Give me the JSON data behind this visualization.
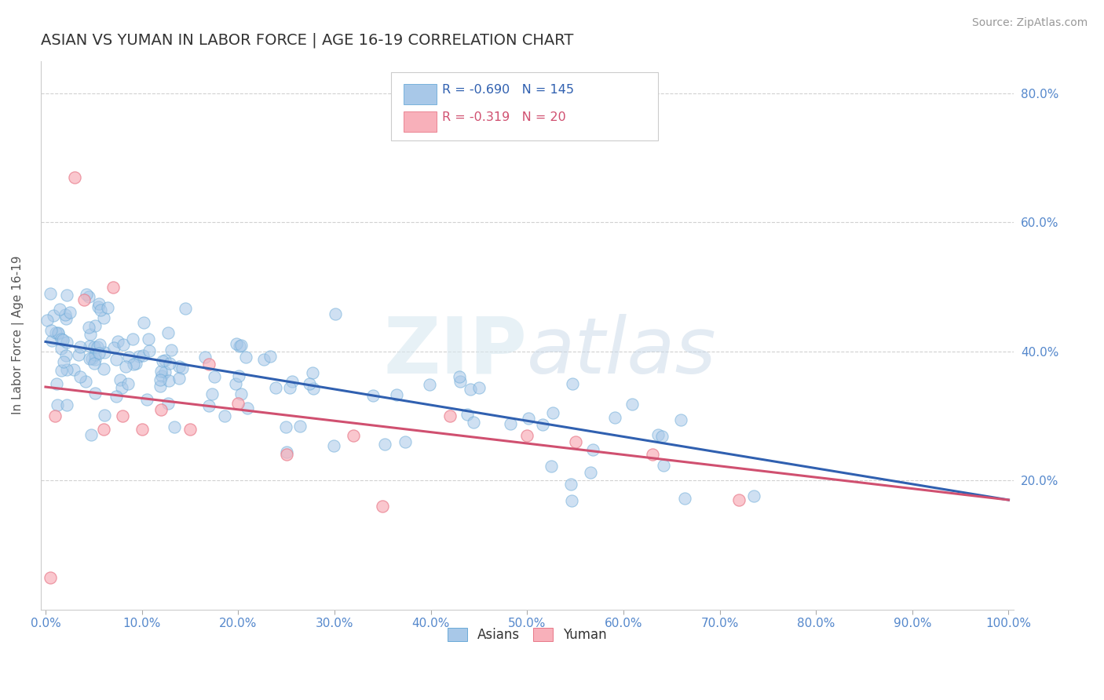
{
  "title": "ASIAN VS YUMAN IN LABOR FORCE | AGE 16-19 CORRELATION CHART",
  "source_text": "Source: ZipAtlas.com",
  "ylabel": "In Labor Force | Age 16-19",
  "xlim": [
    -0.005,
    1.005
  ],
  "ylim": [
    0.0,
    0.85
  ],
  "asian_R": -0.69,
  "asian_N": 145,
  "yuman_R": -0.319,
  "yuman_N": 20,
  "asian_color": "#A8C8E8",
  "asian_edge": "#6AAAD8",
  "yuman_color": "#F8B0BA",
  "yuman_edge": "#E87888",
  "trend_asian_color": "#3060B0",
  "trend_yuman_color": "#D05070",
  "watermark_color": "#E0E8F0",
  "grid_color": "#CCCCCC",
  "title_color": "#333333",
  "axis_tick_color": "#5588CC",
  "legend_R_color_asian": "#3060B0",
  "legend_R_color_yuman": "#D05070",
  "legend_N_color": "#3060B0",
  "asian_intercept": 0.415,
  "asian_slope": -0.245,
  "yuman_intercept": 0.345,
  "yuman_slope": -0.175
}
